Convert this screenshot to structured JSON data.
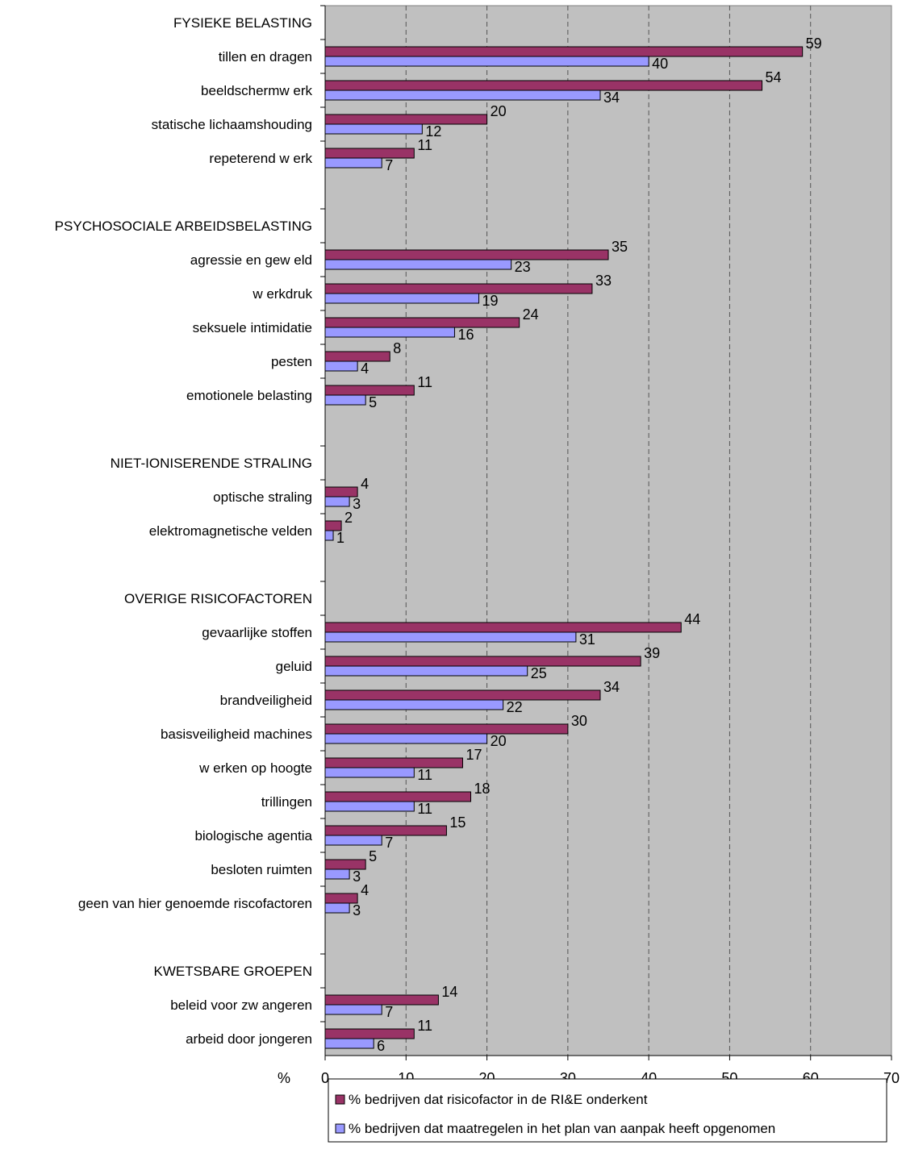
{
  "chart_data": {
    "type": "bar",
    "orientation": "horizontal",
    "categories": [
      "FYSIEKE BELASTING",
      "tillen en dragen",
      "beeldschermw erk",
      "statische lichaamshouding",
      "repeterend w erk",
      "",
      "PSYCHOSOCIALE ARBEIDSBELASTING",
      "agressie en gew eld",
      "w erkdruk",
      "seksuele intimidatie",
      "pesten",
      "emotionele belasting",
      "",
      "NIET-IONISERENDE STRALING",
      "optische straling",
      "elektromagnetische velden",
      "",
      "OVERIGE RISICOFACTOREN",
      "gevaarlijke stoffen",
      "geluid",
      "brandveiligheid",
      "basisveiligheid machines",
      "w erken op hoogte",
      "trillingen",
      "biologische agentia",
      "besloten ruimten",
      "geen van hier genoemde riscofactoren",
      "",
      "KWETSBARE GROEPEN",
      "beleid voor zw angeren",
      "arbeid door jongeren"
    ],
    "series": [
      {
        "name": "% bedrijven dat risicofactor in de RI&E onderkent",
        "color": "#993366",
        "values": [
          null,
          59,
          54,
          20,
          11,
          null,
          null,
          35,
          33,
          24,
          8,
          11,
          null,
          null,
          4,
          2,
          null,
          null,
          44,
          39,
          34,
          30,
          17,
          18,
          15,
          5,
          4,
          null,
          null,
          14,
          11
        ]
      },
      {
        "name": "% bedrijven dat maatregelen in het plan van aanpak heeft opgenomen",
        "color": "#9999FF",
        "values": [
          null,
          40,
          34,
          12,
          7,
          null,
          null,
          23,
          19,
          16,
          4,
          5,
          null,
          null,
          3,
          1,
          null,
          null,
          31,
          25,
          22,
          20,
          11,
          11,
          7,
          3,
          3,
          null,
          null,
          7,
          6
        ]
      }
    ],
    "xlabel": "%",
    "xlim": [
      0,
      70
    ],
    "xticks": [
      "0",
      "10",
      "20",
      "30",
      "40",
      "50",
      "60",
      "70"
    ],
    "plot_background": "#C0C0C0",
    "grid": "vertical dashed",
    "legend_position": "bottom"
  }
}
